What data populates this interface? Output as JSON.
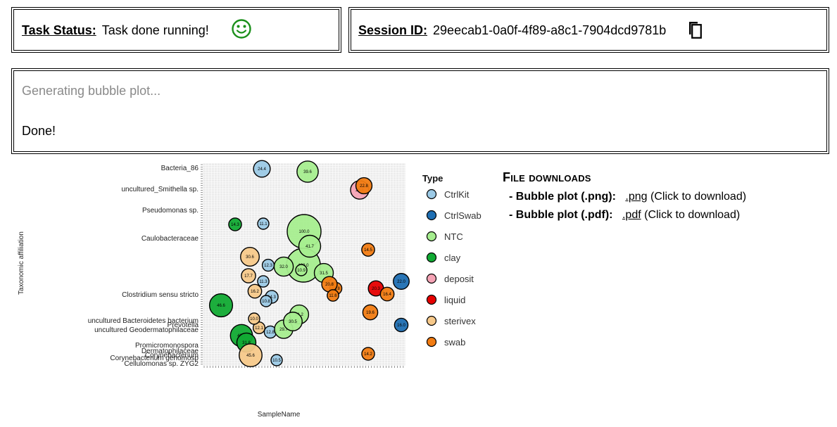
{
  "status": {
    "label": "Task Status:",
    "value": "Task done running!",
    "icon": "smiley-icon",
    "icon_color": "#1a8f1a"
  },
  "session": {
    "label": "Session ID:",
    "value": "29eecab1-0a0f-4f89-a8c1-7904dcd9781b",
    "icon": "copy-icon"
  },
  "log": {
    "line1": "Generating bubble plot...",
    "line2": "Done!"
  },
  "downloads": {
    "title": "File downloads",
    "items": [
      {
        "label": "- Bubble plot (.png):",
        "link": ".png",
        "note": "(Click to download)"
      },
      {
        "label": "- Bubble plot (.pdf):",
        "link": ".pdf",
        "note": "(Click to download)"
      }
    ]
  },
  "chart_data": {
    "type": "scatter",
    "title": "",
    "xlabel": "SampleName",
    "ylabel": "Taxonomic affiliation",
    "grid": true,
    "legend_position": "right",
    "legend": {
      "title": "Type",
      "entries": [
        {
          "name": "CtrlKit",
          "color": "#9ccae6"
        },
        {
          "name": "CtrlSwab",
          "color": "#1f6fb3"
        },
        {
          "name": "NTC",
          "color": "#a6ee8f"
        },
        {
          "name": "clay",
          "color": "#11aa33"
        },
        {
          "name": "deposit",
          "color": "#f5a3b5"
        },
        {
          "name": "liquid",
          "color": "#e60000"
        },
        {
          "name": "sterivex",
          "color": "#f7c98a"
        },
        {
          "name": "swab",
          "color": "#f27c12"
        }
      ]
    },
    "y_ticks_visible": [
      "Bacteria_86",
      "uncultured_Smithella sp.",
      "Pseudomonas sp.",
      "Caulobacteraceae",
      "Clostridium sensu stricto",
      "Prevotella",
      "uncultured Bacteroidetes bacterium",
      "uncultured Geodermatophilaceae",
      "Promicromonospora",
      "Dermatophilaceae",
      "Corynebacterium",
      "Corynebacterium genomosp",
      "Cellulomonas sp. ZYG2"
    ],
    "bubbles": [
      {
        "type": "CtrlKit",
        "value": 24.4
      },
      {
        "type": "CtrlKit",
        "value": 11.1
      },
      {
        "type": "CtrlKit",
        "value": 12.3
      },
      {
        "type": "CtrlKit",
        "value": 11.3
      },
      {
        "type": "CtrlKit",
        "value": 14.3
      },
      {
        "type": "CtrlKit",
        "value": 12.8
      },
      {
        "type": "CtrlKit",
        "value": 10.5
      },
      {
        "type": "CtrlKit",
        "value": 10.8
      },
      {
        "type": "NTC",
        "value": 39.6
      },
      {
        "type": "NTC",
        "value": 100.0
      },
      {
        "type": "NTC",
        "value": 100.0
      },
      {
        "type": "NTC",
        "value": 32.0
      },
      {
        "type": "NTC",
        "value": 41.7
      },
      {
        "type": "NTC",
        "value": 31.2
      },
      {
        "type": "NTC",
        "value": 29.7
      },
      {
        "type": "NTC",
        "value": 30.5
      },
      {
        "type": "NTC",
        "value": 10.9
      },
      {
        "type": "NTC",
        "value": 31.5
      },
      {
        "type": "clay",
        "value": 46.6
      },
      {
        "type": "clay",
        "value": 14.3
      },
      {
        "type": "clay",
        "value": 42.7
      },
      {
        "type": "clay",
        "value": 31.8
      },
      {
        "type": "sterivex",
        "value": 30.6
      },
      {
        "type": "sterivex",
        "value": 17.7
      },
      {
        "type": "sterivex",
        "value": 12.1
      },
      {
        "type": "sterivex",
        "value": 10.0
      },
      {
        "type": "sterivex",
        "value": 45.6
      },
      {
        "type": "sterivex",
        "value": 16.2
      },
      {
        "type": "deposit",
        "value": 29.6
      },
      {
        "type": "liquid",
        "value": 20.3
      },
      {
        "type": "swab",
        "value": 22.8
      },
      {
        "type": "swab",
        "value": 14.5
      },
      {
        "type": "swab",
        "value": 19.6
      },
      {
        "type": "swab",
        "value": 14.2
      },
      {
        "type": "swab",
        "value": 12.8
      },
      {
        "type": "swab",
        "value": 20.8
      },
      {
        "type": "swab",
        "value": 16.4
      },
      {
        "type": "swab",
        "value": 11.6
      },
      {
        "type": "CtrlSwab",
        "value": 22.0
      },
      {
        "type": "CtrlSwab",
        "value": 16.0
      }
    ]
  }
}
